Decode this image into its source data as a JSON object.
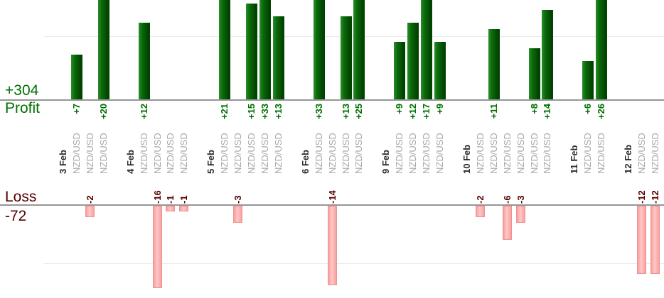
{
  "chart_data": {
    "type": "bar",
    "description": "daily trade profit and loss bars",
    "symbol": "NZD/USD",
    "profit_total_label": "+304",
    "profit_axis_label": "Profit",
    "loss_axis_label": "Loss",
    "loss_total_label": "-72",
    "gridline_values": {
      "profit": 10,
      "loss": -10
    },
    "groups": [
      {
        "date": "3 Feb",
        "trades": [
          7,
          -2,
          20
        ]
      },
      {
        "date": "4 Feb",
        "trades": [
          12,
          -16,
          -1,
          -1
        ]
      },
      {
        "date": "5 Feb",
        "trades": [
          21,
          -3,
          15,
          33,
          13
        ]
      },
      {
        "date": "6 Feb",
        "trades": [
          33,
          -14,
          13,
          25
        ]
      },
      {
        "date": "9 Feb",
        "trades": [
          9,
          12,
          17,
          9
        ]
      },
      {
        "date": "10 Feb",
        "trades": [
          -2,
          11,
          -6,
          -3,
          8,
          14
        ]
      },
      {
        "date": "11 Feb",
        "trades": [
          6,
          26
        ]
      },
      {
        "date": "12 Feb",
        "trades": [
          -12,
          -12
        ]
      }
    ],
    "colors": {
      "profit_text": "#007000",
      "loss_text": "#550000",
      "date_text": "#2b2b2b",
      "symbol_text": "#a8a8a8",
      "axis_line": "#969696",
      "gridline": "#ebebeb",
      "profit_bar_left": "#2a8f2a",
      "profit_bar_mid": "#0b6b0b",
      "profit_bar_right": "#014301",
      "loss_bar_left": "#f79d9d",
      "loss_bar_mid": "#ffc7c7",
      "loss_bar_right": "#f7a0a0",
      "loss_bar_border": "#ee9393"
    }
  }
}
